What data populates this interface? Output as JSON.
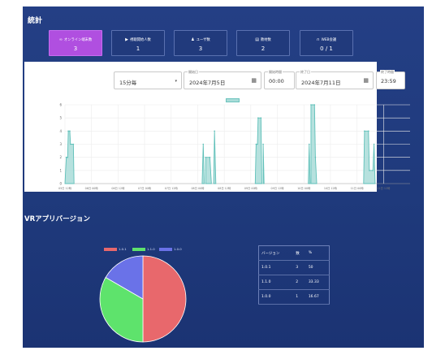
{
  "page_title": "統計",
  "stats": [
    {
      "label": "オンライン端末数",
      "value": "3",
      "icon": "vr-headset-icon",
      "active": true
    },
    {
      "label": "視聴開始人数",
      "value": "1",
      "icon": "play-icon",
      "active": false
    },
    {
      "label": "ユーザ数",
      "value": "3",
      "icon": "users-icon",
      "active": false
    },
    {
      "label": "教材数",
      "value": "2",
      "icon": "book-icon",
      "active": false
    },
    {
      "label": "WEB会議",
      "value": "0 / 1",
      "icon": "headset-icon",
      "active": false
    }
  ],
  "filters": {
    "interval": {
      "value": "15分毎"
    },
    "start_date": {
      "label": "開始日",
      "value": "2024年7月5日"
    },
    "start_time": {
      "label": "開始時間",
      "value": "00:00"
    },
    "end_date": {
      "label": "終了日",
      "value": "2024年7月11日"
    },
    "end_time": {
      "label": "終了時間",
      "value": "23:59"
    }
  },
  "chart_data": {
    "type": "area",
    "color": "#5fc0b9",
    "fill": "#a9dcd8",
    "ylim": [
      0,
      6
    ],
    "yticks": [
      "0",
      "1",
      "2",
      "3",
      "4",
      "5",
      "6"
    ],
    "xticks": [
      "05日 12時",
      "06日 00時",
      "06日 12時",
      "07日 00時",
      "07日 12時",
      "08日 00時",
      "08日 12時",
      "09日 00時",
      "09日 12時",
      "10日 00時",
      "10日 12時",
      "11日 00時",
      "11日 12時"
    ],
    "x_range": [
      0,
      156
    ],
    "points": [
      [
        0,
        0
      ],
      [
        0.6,
        2
      ],
      [
        1.2,
        2
      ],
      [
        1.5,
        4
      ],
      [
        2.2,
        4
      ],
      [
        2.5,
        3
      ],
      [
        3.8,
        3
      ],
      [
        4.1,
        0
      ],
      [
        62,
        0
      ],
      [
        62.5,
        3
      ],
      [
        63,
        0
      ],
      [
        63.6,
        2
      ],
      [
        65.5,
        2
      ],
      [
        66.2,
        0
      ],
      [
        67.2,
        0
      ],
      [
        67.6,
        4
      ],
      [
        68.2,
        0
      ],
      [
        86,
        0
      ],
      [
        86.4,
        3
      ],
      [
        87,
        3
      ],
      [
        87.3,
        5
      ],
      [
        88.6,
        5
      ],
      [
        89,
        0
      ],
      [
        89.6,
        3
      ],
      [
        90,
        0
      ],
      [
        110,
        0
      ],
      [
        110.4,
        3
      ],
      [
        110.8,
        0
      ],
      [
        111.2,
        6
      ],
      [
        112.8,
        6
      ],
      [
        113.2,
        2
      ],
      [
        113.8,
        0
      ],
      [
        135,
        0
      ],
      [
        135.4,
        4
      ],
      [
        137.2,
        4
      ],
      [
        137.6,
        1
      ],
      [
        139.2,
        1
      ],
      [
        139.7,
        3
      ],
      [
        140.2,
        0
      ]
    ]
  },
  "vr_section_title": "VRアプリバージョン",
  "pie_data": {
    "legend": [
      {
        "name": "1.0.1",
        "color": "#e8686c"
      },
      {
        "name": "1.1.0",
        "color": "#5ee36c"
      },
      {
        "name": "1.0.0",
        "color": "#6a72e8"
      }
    ],
    "values": [
      3,
      2,
      1
    ]
  },
  "version_table": {
    "headers": [
      "バージョン",
      "数",
      "%"
    ],
    "rows": [
      [
        "1.0.1",
        "3",
        "50"
      ],
      [
        "1.1.0",
        "2",
        "33.33"
      ],
      [
        "1.0.0",
        "1",
        "16.67"
      ]
    ]
  }
}
